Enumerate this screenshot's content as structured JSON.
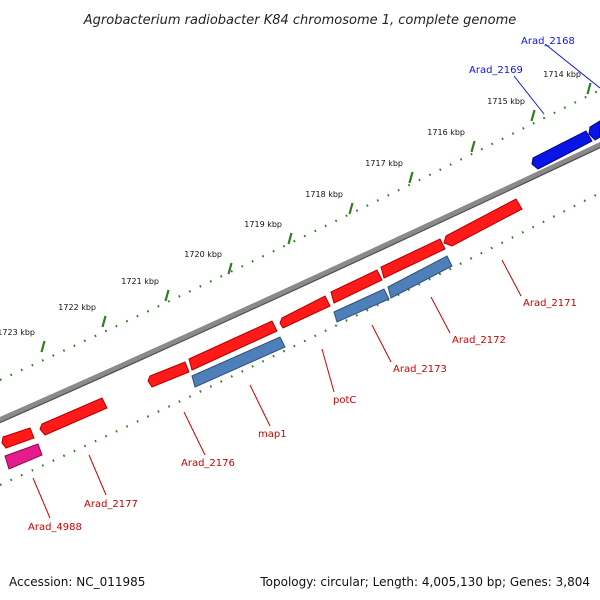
{
  "title": "Agrobacterium radiobacter K84 chromosome 1, complete genome",
  "footer": {
    "accession": "Accession: NC_011985",
    "summary": "Topology: circular; Length: 4,005,130 bp; Genes: 3,804"
  },
  "colors": {
    "backbone": "#7a7a7a",
    "tick": "#2e7d1e",
    "gene_red": "#ff1a1a",
    "gene_red_dark": "#b30000",
    "gene_blue": "#4e7fb8",
    "gene_blue_dark": "#2d527e",
    "gene_navy": "#0a14e6",
    "gene_pink": "#e61c8c",
    "label_red": "#cc0000",
    "label_blue": "#0a14e6"
  },
  "kbp_labels": [
    "1714 kbp",
    "1715 kbp",
    "1716 kbp",
    "1717 kbp",
    "1718 kbp",
    "1719 kbp",
    "1720 kbp",
    "1721 kbp",
    "1722 kbp",
    "1723 kbp"
  ],
  "gene_labels": [
    {
      "name": "Arad_2168",
      "color": "blue"
    },
    {
      "name": "Arad_2169",
      "color": "blue"
    },
    {
      "name": "Arad_2171",
      "color": "red"
    },
    {
      "name": "Arad_2172",
      "color": "red"
    },
    {
      "name": "Arad_2173",
      "color": "red"
    },
    {
      "name": "potC",
      "color": "red"
    },
    {
      "name": "map1",
      "color": "red"
    },
    {
      "name": "Arad_2176",
      "color": "red"
    },
    {
      "name": "Arad_2177",
      "color": "red"
    },
    {
      "name": "Arad_4988",
      "color": "red"
    }
  ]
}
